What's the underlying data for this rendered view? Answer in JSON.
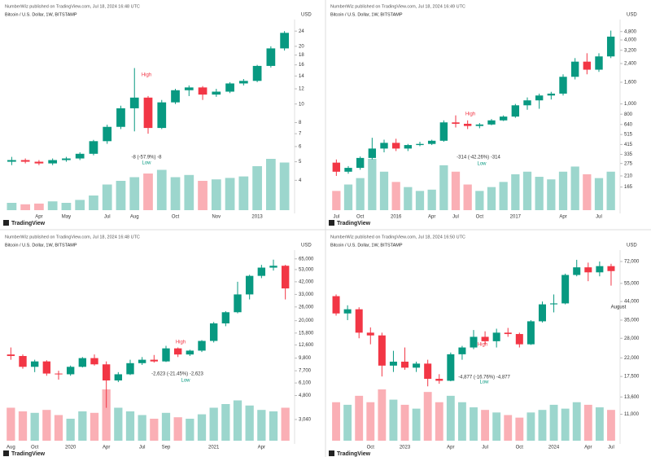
{
  "chart_data": [
    {
      "type": "candlestick",
      "title": "NumberWiz published on TradingView.com, Jul 18, 2024 16:48 UTC",
      "subtitle": "Bitcoin / U.S. Dollar, 1W, BITSTAMP",
      "unit": "USD",
      "watermark": "TradingView",
      "log": true,
      "up_color": "#089981",
      "down_color": "#f23645",
      "ylim": [
        3.5,
        26
      ],
      "yticks": [
        4,
        5,
        6,
        7,
        8,
        10,
        12,
        14,
        16,
        18,
        20,
        24
      ],
      "categories": [
        null,
        null,
        "Apr",
        null,
        "May",
        null,
        null,
        "Jul",
        null,
        "Aug",
        null,
        null,
        "Oct",
        null,
        null,
        "Nov",
        null,
        null,
        "2013",
        null,
        null
      ],
      "ohlc": [
        [
          5,
          5.3,
          4.8,
          5.1
        ],
        [
          5.1,
          5.2,
          4.9,
          5.0
        ],
        [
          5.0,
          5.1,
          4.8,
          4.9
        ],
        [
          4.9,
          5.2,
          4.8,
          5.1
        ],
        [
          5.1,
          5.3,
          5.0,
          5.2
        ],
        [
          5.2,
          5.6,
          5.1,
          5.5
        ],
        [
          5.5,
          6.5,
          5.4,
          6.4
        ],
        [
          6.4,
          7.8,
          6.2,
          7.6
        ],
        [
          7.6,
          9.8,
          7.4,
          9.5
        ],
        [
          9.5,
          15.4,
          7.2,
          10.8
        ],
        [
          10.8,
          11,
          7,
          7.5
        ],
        [
          7.5,
          10.5,
          7.4,
          10.2
        ],
        [
          10.2,
          12,
          10,
          11.8
        ],
        [
          11.8,
          12.5,
          11,
          12.2
        ],
        [
          12.2,
          12.4,
          10.5,
          11.2
        ],
        [
          11.2,
          12,
          10.9,
          11.6
        ],
        [
          11.6,
          13,
          11.4,
          12.8
        ],
        [
          12.8,
          13.5,
          12.5,
          13.2
        ],
        [
          13.2,
          16,
          13,
          15.8
        ],
        [
          15.8,
          20,
          15.5,
          19.5
        ],
        [
          19.5,
          24,
          19,
          23.5
        ]
      ],
      "volume": [
        10,
        8,
        9,
        12,
        10,
        14,
        20,
        35,
        40,
        45,
        50,
        55,
        45,
        48,
        40,
        42,
        44,
        46,
        60,
        70,
        65
      ],
      "annotations": [
        "High",
        "Low",
        "-8 (-57.9%) -8"
      ]
    },
    {
      "type": "candlestick",
      "title": "NumberWiz published on TradingView.com, Jul 18, 2024 16:49 UTC",
      "subtitle": "Bitcoin / U.S. Dollar, 1W, BITSTAMP",
      "unit": "USD",
      "watermark": "TradingView",
      "log": true,
      "up_color": "#089981",
      "down_color": "#f23645",
      "ylim": [
        150,
        5600
      ],
      "yticks": [
        165,
        210,
        275,
        335,
        415,
        515,
        640,
        800,
        {
          "value": 1000,
          "label": "1,000"
        },
        {
          "value": 1600,
          "label": "1,600"
        },
        {
          "value": 2400,
          "label": "2,400"
        },
        {
          "value": 3200,
          "label": "3,200"
        },
        {
          "value": 4000,
          "label": "4,000"
        },
        {
          "value": 4800,
          "label": "4,800"
        }
      ],
      "categories": [
        "Jul",
        null,
        "Oct",
        null,
        null,
        "2016",
        null,
        null,
        "Apr",
        null,
        "Jul",
        null,
        "Oct",
        null,
        null,
        "2017",
        null,
        null,
        null,
        "Apr",
        null,
        null,
        "Jul",
        null
      ],
      "ohlc": [
        [
          280,
          300,
          210,
          230
        ],
        [
          230,
          260,
          220,
          250
        ],
        [
          250,
          320,
          240,
          310
        ],
        [
          310,
          480,
          300,
          380
        ],
        [
          380,
          460,
          350,
          430
        ],
        [
          430,
          470,
          360,
          380
        ],
        [
          380,
          420,
          360,
          410
        ],
        [
          410,
          440,
          400,
          420
        ],
        [
          420,
          460,
          410,
          450
        ],
        [
          450,
          700,
          440,
          670
        ],
        [
          670,
          780,
          600,
          650
        ],
        [
          650,
          700,
          580,
          620
        ],
        [
          620,
          660,
          590,
          640
        ],
        [
          640,
          720,
          630,
          700
        ],
        [
          700,
          780,
          690,
          760
        ],
        [
          760,
          1000,
          740,
          970
        ],
        [
          970,
          1150,
          880,
          1080
        ],
        [
          1080,
          1250,
          900,
          1200
        ],
        [
          1200,
          1300,
          1100,
          1250
        ],
        [
          1250,
          1900,
          1200,
          1800
        ],
        [
          1800,
          2700,
          1700,
          2500
        ],
        [
          2500,
          3000,
          1900,
          2100
        ],
        [
          2100,
          3000,
          2000,
          2800
        ],
        [
          2800,
          4900,
          2700,
          4300
        ]
      ],
      "volume": [
        15,
        20,
        25,
        40,
        30,
        22,
        18,
        15,
        16,
        35,
        30,
        20,
        15,
        18,
        22,
        28,
        30,
        26,
        24,
        30,
        34,
        28,
        25,
        30
      ],
      "annotations": [
        "High",
        "Low",
        "-314 (-42.26%) -314"
      ]
    },
    {
      "type": "candlestick",
      "title": "NumberWiz published on TradingView.com, Jul 18, 2024 16:48 UTC",
      "subtitle": "Bitcoin / U.S. Dollar, 1W, BITSTAMP",
      "unit": "USD",
      "watermark": "TradingView",
      "log": true,
      "up_color": "#089981",
      "down_color": "#f23645",
      "ylim": [
        2900,
        70000
      ],
      "yticks": [
        {
          "value": 3040,
          "label": "3,040"
        },
        {
          "value": 4800,
          "label": "4,800"
        },
        {
          "value": 6100,
          "label": "6,100"
        },
        {
          "value": 7700,
          "label": "7,700"
        },
        {
          "value": 9800,
          "label": "9,800"
        },
        {
          "value": 12600,
          "label": "12,600"
        },
        {
          "value": 15800,
          "label": "15,800"
        },
        {
          "value": 20000,
          "label": "20,000"
        },
        {
          "value": 26000,
          "label": "26,000"
        },
        {
          "value": 33000,
          "label": "33,000"
        },
        {
          "value": 42000,
          "label": "42,000"
        },
        {
          "value": 53000,
          "label": "53,000"
        },
        {
          "value": 65000,
          "label": "65,000"
        }
      ],
      "categories": [
        "Aug",
        null,
        "Oct",
        null,
        null,
        "2020",
        null,
        null,
        "Apr",
        null,
        null,
        "Jul",
        null,
        "Sep",
        null,
        null,
        null,
        "2021",
        null,
        null,
        null,
        "Apr",
        null,
        null
      ],
      "ohlc": [
        [
          10500,
          12000,
          9500,
          10200
        ],
        [
          10200,
          10500,
          8000,
          8300
        ],
        [
          8300,
          9500,
          7500,
          9200
        ],
        [
          9200,
          9400,
          7000,
          7300
        ],
        [
          7300,
          7700,
          6500,
          7200
        ],
        [
          7200,
          8500,
          7000,
          8300
        ],
        [
          8300,
          10000,
          8200,
          9800
        ],
        [
          9800,
          10500,
          8500,
          8700
        ],
        [
          8700,
          9200,
          3800,
          6400
        ],
        [
          6400,
          7500,
          6200,
          7200
        ],
        [
          7200,
          9500,
          7100,
          8900
        ],
        [
          8900,
          10000,
          8600,
          9500
        ],
        [
          9500,
          10400,
          9000,
          9200
        ],
        [
          9200,
          12400,
          9100,
          11800
        ],
        [
          11800,
          12000,
          10000,
          10500
        ],
        [
          10500,
          11500,
          10200,
          11300
        ],
        [
          11300,
          13800,
          11000,
          13600
        ],
        [
          13600,
          19500,
          13200,
          19000
        ],
        [
          19000,
          24000,
          18000,
          23500
        ],
        [
          23500,
          42000,
          23000,
          33000
        ],
        [
          33000,
          48000,
          30000,
          47000
        ],
        [
          47000,
          58000,
          45000,
          55000
        ],
        [
          55000,
          64000,
          52000,
          57000
        ],
        [
          57000,
          58000,
          30000,
          37000
        ]
      ],
      "volume": [
        45,
        40,
        38,
        42,
        35,
        30,
        40,
        38,
        70,
        45,
        40,
        35,
        30,
        38,
        32,
        30,
        36,
        45,
        50,
        55,
        48,
        42,
        40,
        45
      ],
      "annotations": [
        "High",
        "Low",
        "-2,623 (-21.45%) -2,623"
      ]
    },
    {
      "type": "candlestick",
      "title": "NumberWiz published on TradingView.com, Jul 18, 2024 16:50 UTC",
      "subtitle": "Bitcoin / U.S. Dollar, 1W, BITSTAMP",
      "unit": "USD",
      "watermark": "TradingView",
      "log": true,
      "up_color": "#089981",
      "down_color": "#f23645",
      "ylim": [
        10000,
        78000
      ],
      "yticks": [
        {
          "value": 11000,
          "label": "11,000"
        },
        {
          "value": 13600,
          "label": "13,600"
        },
        {
          "value": 17500,
          "label": "17,500"
        },
        {
          "value": 22000,
          "label": "22,000"
        },
        {
          "value": 28000,
          "label": "28,000"
        },
        {
          "value": 35000,
          "label": "35,000"
        },
        {
          "value": 44000,
          "label": "44,000"
        },
        {
          "value": 55000,
          "label": "55,000"
        },
        {
          "value": 72000,
          "label": "72,000"
        }
      ],
      "categories": [
        null,
        null,
        null,
        "Oct",
        null,
        null,
        "2023",
        null,
        null,
        null,
        "Apr",
        null,
        null,
        "Jul",
        null,
        null,
        "Oct",
        null,
        null,
        "2024",
        null,
        null,
        "Apr",
        null,
        "Jul"
      ],
      "ohlc": [
        [
          47000,
          48000,
          37000,
          38000
        ],
        [
          38000,
          42000,
          35000,
          40000
        ],
        [
          40000,
          41000,
          28000,
          30000
        ],
        [
          30000,
          32000,
          26000,
          29000
        ],
        [
          29000,
          30000,
          17500,
          20000
        ],
        [
          20000,
          24000,
          18500,
          21000
        ],
        [
          21000,
          25000,
          19000,
          19500
        ],
        [
          19500,
          21000,
          18500,
          20500
        ],
        [
          20500,
          21500,
          15500,
          17000
        ],
        [
          17000,
          18000,
          16000,
          16600
        ],
        [
          16600,
          23500,
          16500,
          23000
        ],
        [
          23000,
          25500,
          21500,
          25000
        ],
        [
          25000,
          31000,
          24500,
          28500
        ],
        [
          28500,
          30500,
          26000,
          27000
        ],
        [
          27000,
          31500,
          25000,
          30000
        ],
        [
          30000,
          31800,
          28500,
          29500
        ],
        [
          29500,
          30000,
          25000,
          26000
        ],
        [
          26000,
          35000,
          25800,
          34500
        ],
        [
          34500,
          44000,
          34000,
          42500
        ],
        [
          42500,
          48000,
          38500,
          43000
        ],
        [
          43000,
          62000,
          42500,
          61000
        ],
        [
          61000,
          73500,
          60000,
          67000
        ],
        [
          67000,
          71000,
          56500,
          63000
        ],
        [
          63000,
          72000,
          60000,
          68000
        ],
        [
          68000,
          70000,
          53500,
          64000
        ]
      ],
      "volume": [
        30,
        28,
        35,
        30,
        40,
        32,
        28,
        25,
        38,
        30,
        35,
        30,
        26,
        24,
        22,
        20,
        18,
        22,
        24,
        28,
        25,
        30,
        28,
        26,
        24
      ],
      "annotations": [
        "High",
        "Low",
        "-4,877 (-16.76%) -4,877",
        "August"
      ]
    }
  ]
}
